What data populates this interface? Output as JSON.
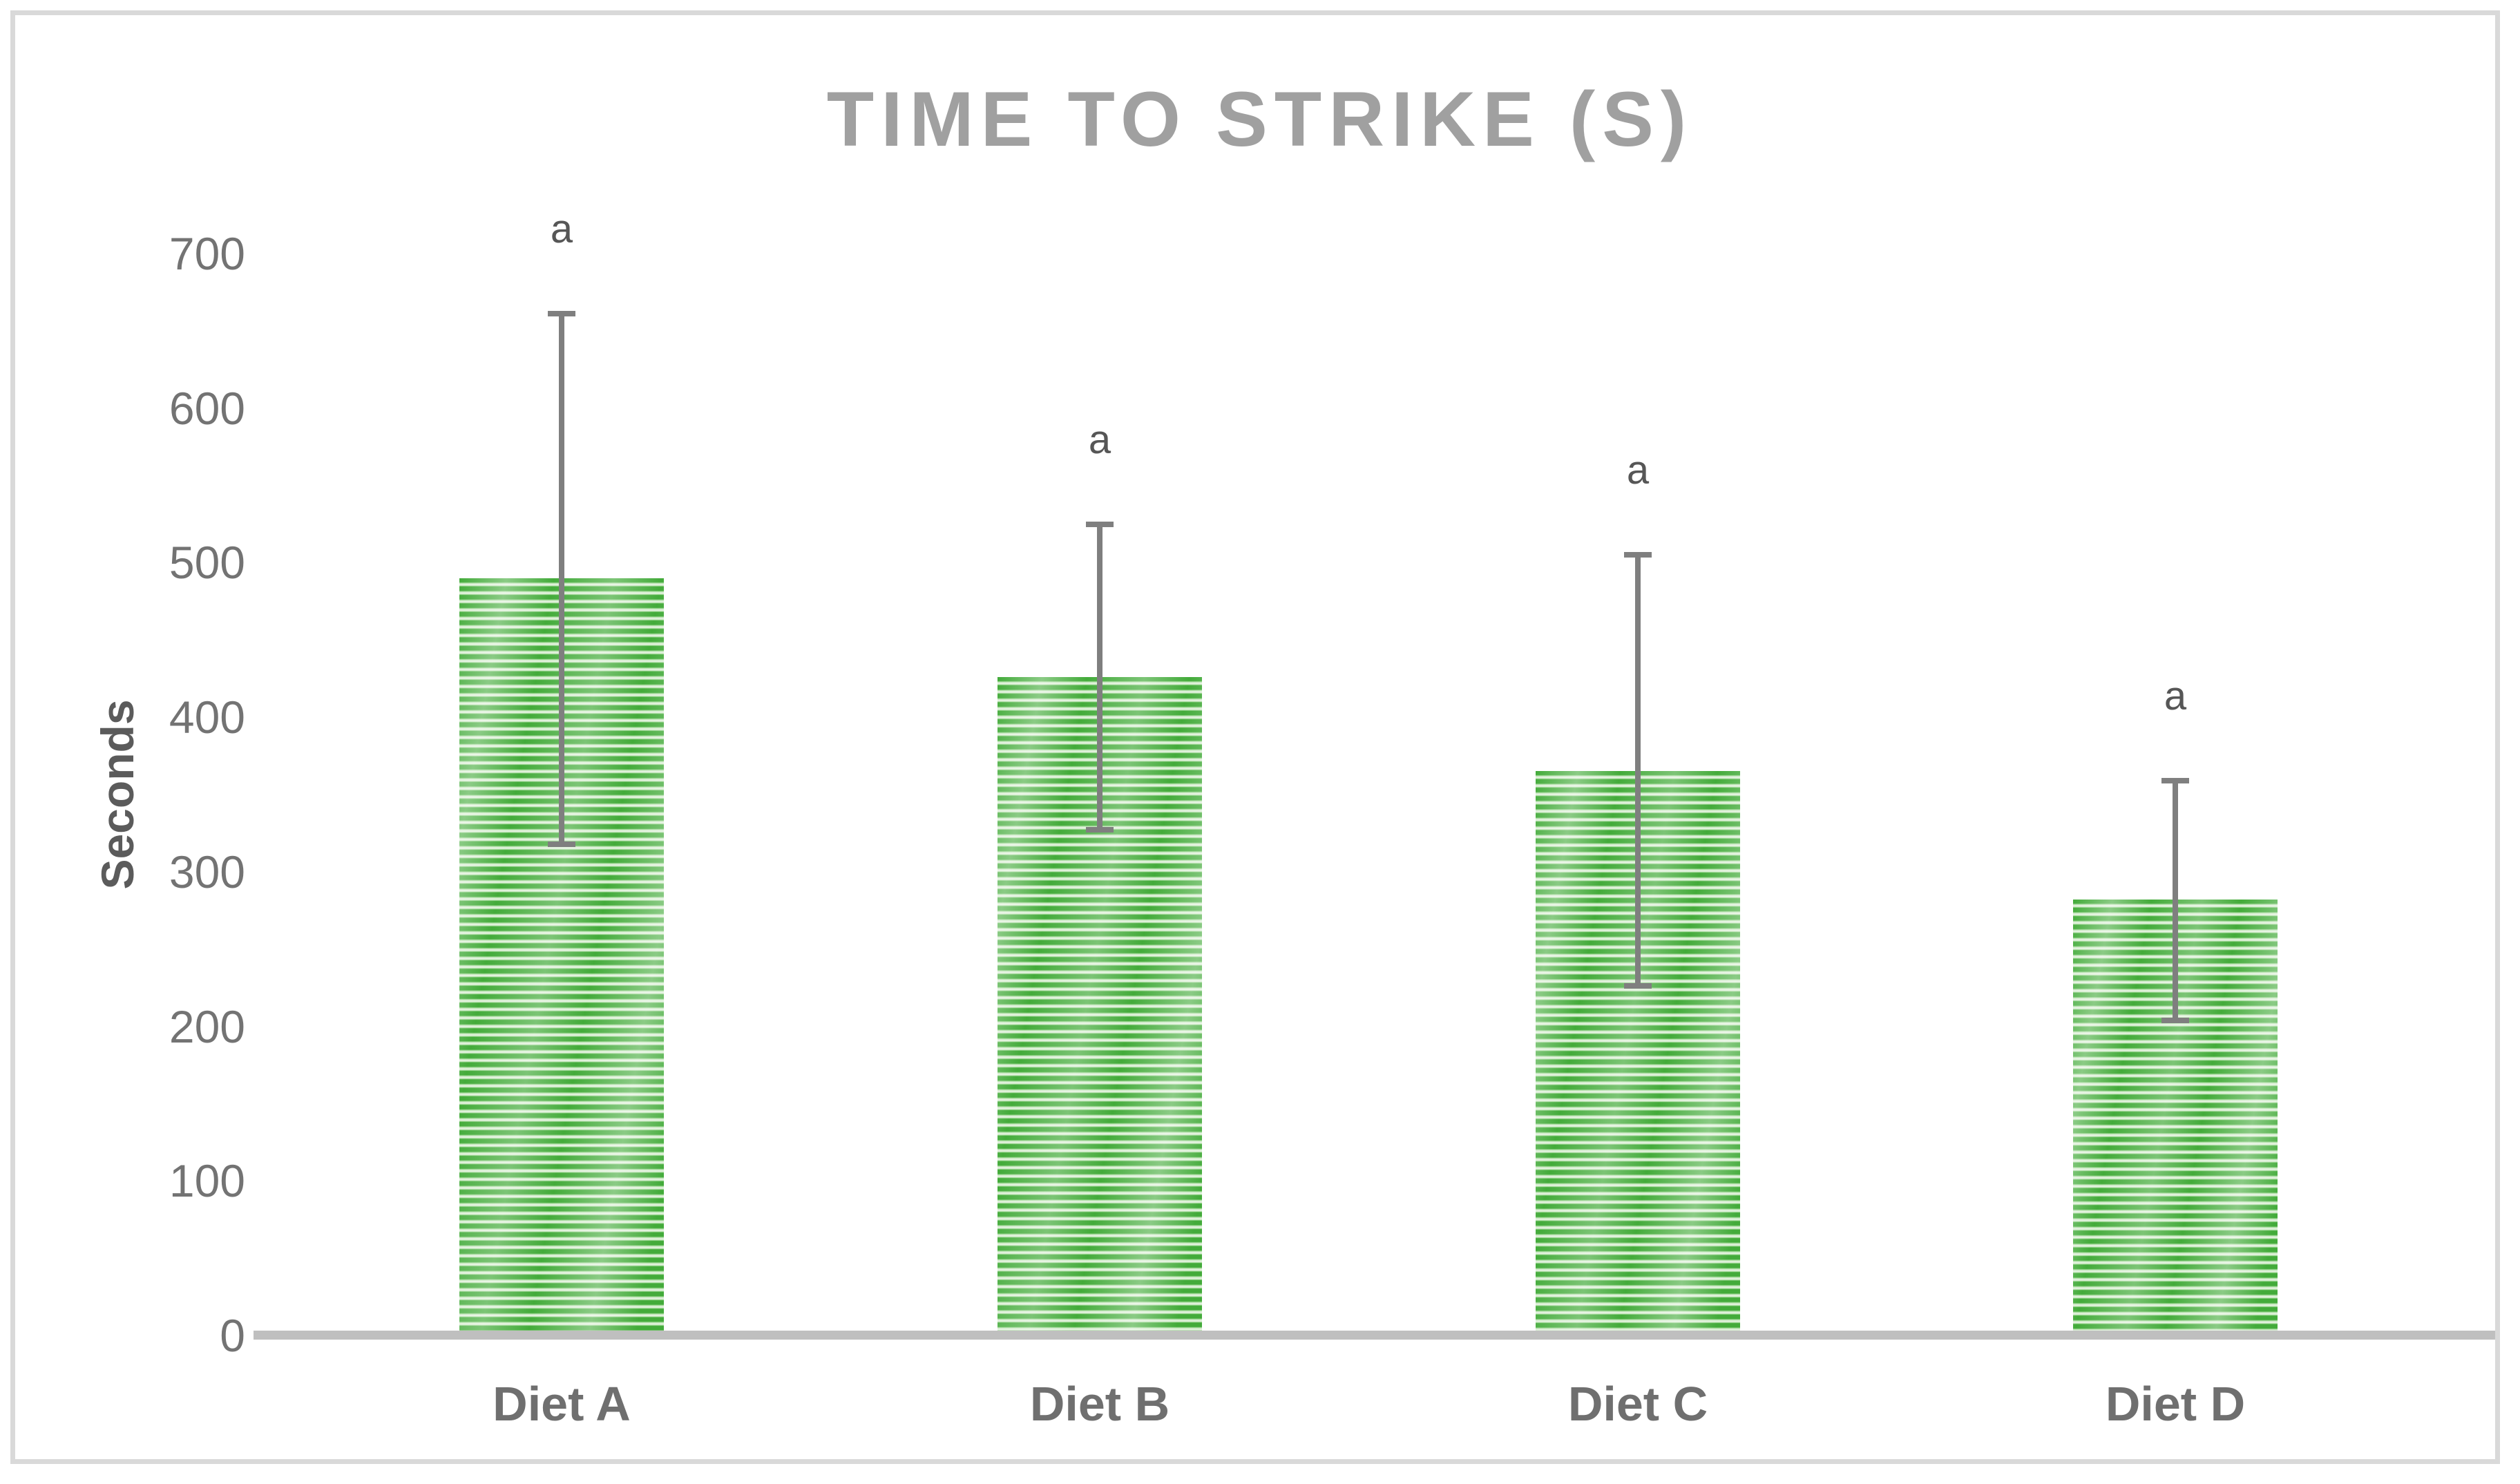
{
  "title": "TIME TO STRIKE (S)",
  "y_axis": {
    "label": "Seconds",
    "tick_labels": [
      "0",
      "100",
      "200",
      "300",
      "400",
      "500",
      "600",
      "700"
    ]
  },
  "x_axis": {
    "labels": [
      "Diet A",
      "Diet B",
      "Diet C",
      "Diet D"
    ]
  },
  "chart_data": {
    "type": "bar",
    "title": "TIME TO STRIKE (S)",
    "categories": [
      "Diet A",
      "Diet B",
      "Diet C",
      "Diet D"
    ],
    "values": [
      490,
      426,
      365,
      282
    ],
    "error_plus": [
      171,
      99,
      140,
      77
    ],
    "error_minus": [
      172,
      99,
      139,
      78
    ],
    "significance_labels": [
      "a",
      "a",
      "a",
      "a"
    ],
    "xlabel": "",
    "ylabel": "Seconds",
    "ylim": [
      0,
      700
    ],
    "ytick_step": 100,
    "grid": false,
    "legend": null
  },
  "colors": {
    "title_text": "#A0A0A0",
    "tick_text": "#737373",
    "category_text": "#6F6F6F",
    "ylabel_text": "#5B5B5B",
    "significance_text": "#565656",
    "bar_stripe_dark": "#43AB3A",
    "bar_stripe_light": "#E1F1DC",
    "error_bar": "#7F7F7F",
    "axis_line": "#BFBFBF",
    "chart_border": "#D9D9D9",
    "background": "#FFFFFF"
  }
}
